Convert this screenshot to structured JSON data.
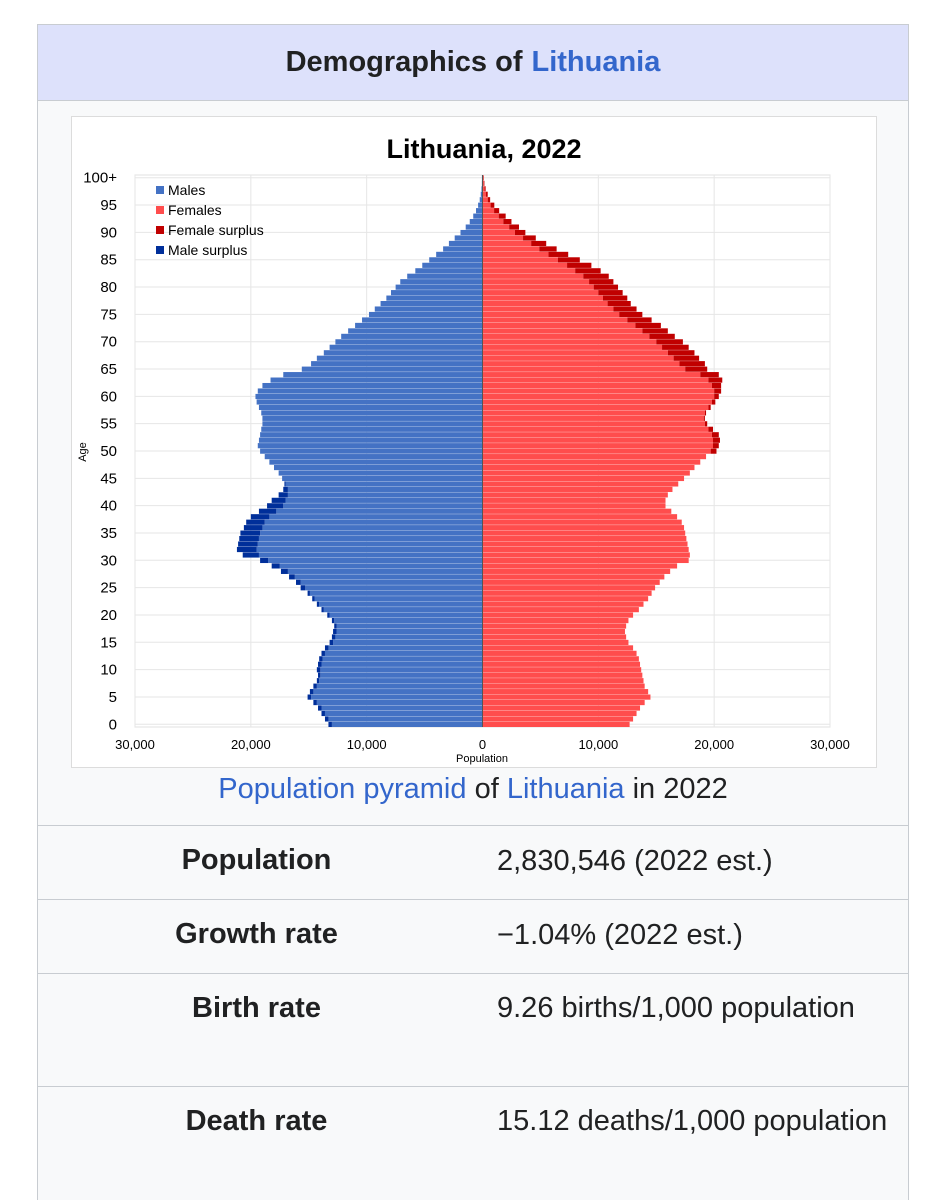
{
  "infobox": {
    "title_prefix": "Demographics of",
    "title_link": "Lithuania",
    "caption": {
      "link1": "Population pyramid",
      "text1": "of",
      "link2": "Lithuania",
      "text2": "in 2022"
    },
    "rows": [
      {
        "label": "Population",
        "value": "2,830,546 (2022 est.)"
      },
      {
        "label": "Growth rate",
        "value": "−1.04% (2022 est.)"
      },
      {
        "label": "Birth rate",
        "value": "9.26 births/1,000 population"
      },
      {
        "label": "Death rate",
        "value": "15.12 deaths/1,000 population"
      }
    ]
  },
  "colors": {
    "header_bg": "#dde1fb",
    "link": "#3366cc",
    "males": "#4472c4",
    "females": "#ff4d4d",
    "female_surplus": "#c00000",
    "male_surplus": "#002f9a"
  },
  "chart_data": {
    "type": "bar",
    "orientation": "horizontal-pyramid",
    "title": "Lithuania, 2022",
    "xlabel": "Population",
    "ylabel": "Age",
    "xlim": [
      -30000,
      30000
    ],
    "ylim": [
      0,
      100
    ],
    "x_ticks": [
      "30,000",
      "20,000",
      "10,000",
      "0",
      "10,000",
      "20,000",
      "30,000"
    ],
    "y_ticks": [
      "0",
      "5",
      "10",
      "15",
      "20",
      "25",
      "30",
      "35",
      "40",
      "45",
      "50",
      "55",
      "60",
      "65",
      "70",
      "75",
      "80",
      "85",
      "90",
      "95",
      "100+"
    ],
    "grid": true,
    "legend_position": "top-left",
    "legend": [
      "Males",
      "Females",
      "Female surplus",
      "Male surplus"
    ],
    "ages": [
      0,
      1,
      2,
      3,
      4,
      5,
      6,
      7,
      8,
      9,
      10,
      11,
      12,
      13,
      14,
      15,
      16,
      17,
      18,
      19,
      20,
      21,
      22,
      23,
      24,
      25,
      26,
      27,
      28,
      29,
      30,
      31,
      32,
      33,
      34,
      35,
      36,
      37,
      38,
      39,
      40,
      41,
      42,
      43,
      44,
      45,
      46,
      47,
      48,
      49,
      50,
      51,
      52,
      53,
      54,
      55,
      56,
      57,
      58,
      59,
      60,
      61,
      62,
      63,
      64,
      65,
      66,
      67,
      68,
      69,
      70,
      71,
      72,
      73,
      74,
      75,
      76,
      77,
      78,
      79,
      80,
      81,
      82,
      83,
      84,
      85,
      86,
      87,
      88,
      89,
      90,
      91,
      92,
      93,
      94,
      95,
      96,
      97,
      98,
      99,
      100
    ],
    "series": [
      {
        "name": "Males",
        "values": [
          13000,
          13300,
          13600,
          13900,
          14300,
          14800,
          14600,
          14300,
          14100,
          14000,
          14000,
          13900,
          13800,
          13600,
          13300,
          12900,
          12700,
          12600,
          12600,
          12800,
          13200,
          13700,
          14100,
          14500,
          14900,
          15300,
          15700,
          16200,
          16800,
          17500,
          18500,
          19300,
          19500,
          19400,
          19300,
          19200,
          19000,
          18800,
          18400,
          17800,
          17200,
          17000,
          16800,
          16800,
          17000,
          17300,
          17600,
          18000,
          18400,
          18800,
          19200,
          19400,
          19300,
          19200,
          19100,
          19000,
          19000,
          19100,
          19300,
          19500,
          19600,
          19400,
          19000,
          18300,
          17200,
          15600,
          14800,
          14300,
          13700,
          13200,
          12700,
          12200,
          11600,
          11000,
          10400,
          9800,
          9300,
          8800,
          8300,
          7900,
          7500,
          7100,
          6500,
          5800,
          5200,
          4600,
          4000,
          3400,
          2900,
          2400,
          1900,
          1450,
          1100,
          800,
          560,
          380,
          240,
          150,
          90,
          55,
          50
        ]
      },
      {
        "name": "Females",
        "values": [
          12700,
          13000,
          13300,
          13600,
          14000,
          14500,
          14300,
          14000,
          13900,
          13800,
          13700,
          13600,
          13500,
          13300,
          13000,
          12600,
          12400,
          12300,
          12400,
          12600,
          13000,
          13500,
          13900,
          14300,
          14600,
          14900,
          15300,
          15700,
          16200,
          16800,
          17800,
          17900,
          17800,
          17700,
          17600,
          17500,
          17400,
          17200,
          16800,
          16300,
          15800,
          15800,
          16000,
          16400,
          16900,
          17400,
          17900,
          18300,
          18800,
          19300,
          19700,
          19900,
          19900,
          19800,
          19500,
          19200,
          19100,
          19200,
          19500,
          19800,
          20000,
          20000,
          19800,
          19500,
          18800,
          17500,
          17000,
          16500,
          16000,
          15500,
          15000,
          14400,
          13800,
          13200,
          12500,
          11800,
          11300,
          10800,
          10400,
          10000,
          9600,
          9200,
          8700,
          8000,
          7300,
          6500,
          5700,
          4900,
          4200,
          3500,
          2800,
          2300,
          1800,
          1400,
          1000,
          700,
          450,
          300,
          180,
          110,
          80
        ]
      },
      {
        "name": "Female surplus",
        "values": [
          0,
          0,
          0,
          0,
          0,
          0,
          0,
          0,
          0,
          0,
          0,
          0,
          0,
          0,
          0,
          0,
          0,
          0,
          0,
          0,
          0,
          0,
          0,
          0,
          0,
          0,
          0,
          0,
          0,
          0,
          0,
          0,
          0,
          0,
          0,
          0,
          0,
          0,
          0,
          0,
          0,
          0,
          0,
          0,
          0,
          0,
          0,
          0,
          0,
          0,
          500,
          500,
          600,
          600,
          400,
          200,
          100,
          100,
          200,
          300,
          400,
          600,
          800,
          1200,
          1600,
          1900,
          2200,
          2200,
          2300,
          2300,
          2300,
          2200,
          2200,
          2200,
          2100,
          2000,
          2000,
          2000,
          2100,
          2100,
          2100,
          2100,
          2200,
          2200,
          2100,
          1900,
          1700,
          1500,
          1300,
          1100,
          900,
          850,
          700,
          600,
          440,
          320,
          210,
          150,
          90,
          55,
          30
        ]
      },
      {
        "name": "Male surplus",
        "values": [
          300,
          300,
          300,
          300,
          300,
          300,
          300,
          300,
          200,
          200,
          300,
          300,
          300,
          300,
          300,
          300,
          300,
          300,
          200,
          200,
          200,
          200,
          200,
          200,
          200,
          400,
          400,
          500,
          600,
          700,
          700,
          1400,
          1700,
          1700,
          1700,
          1700,
          1600,
          1600,
          1600,
          1500,
          1400,
          1200,
          800,
          400,
          100,
          0,
          0,
          0,
          0,
          0,
          0,
          0,
          0,
          0,
          0,
          0,
          0,
          0,
          0,
          0,
          0,
          0,
          0,
          0,
          0,
          0,
          0,
          0,
          0,
          0,
          0,
          0,
          0,
          0,
          0,
          0,
          0,
          0,
          0,
          0,
          0,
          0,
          0,
          0,
          0,
          0,
          0,
          0,
          0,
          0,
          0,
          0,
          0,
          0,
          0,
          0,
          0,
          0,
          0,
          0,
          0
        ]
      }
    ]
  }
}
